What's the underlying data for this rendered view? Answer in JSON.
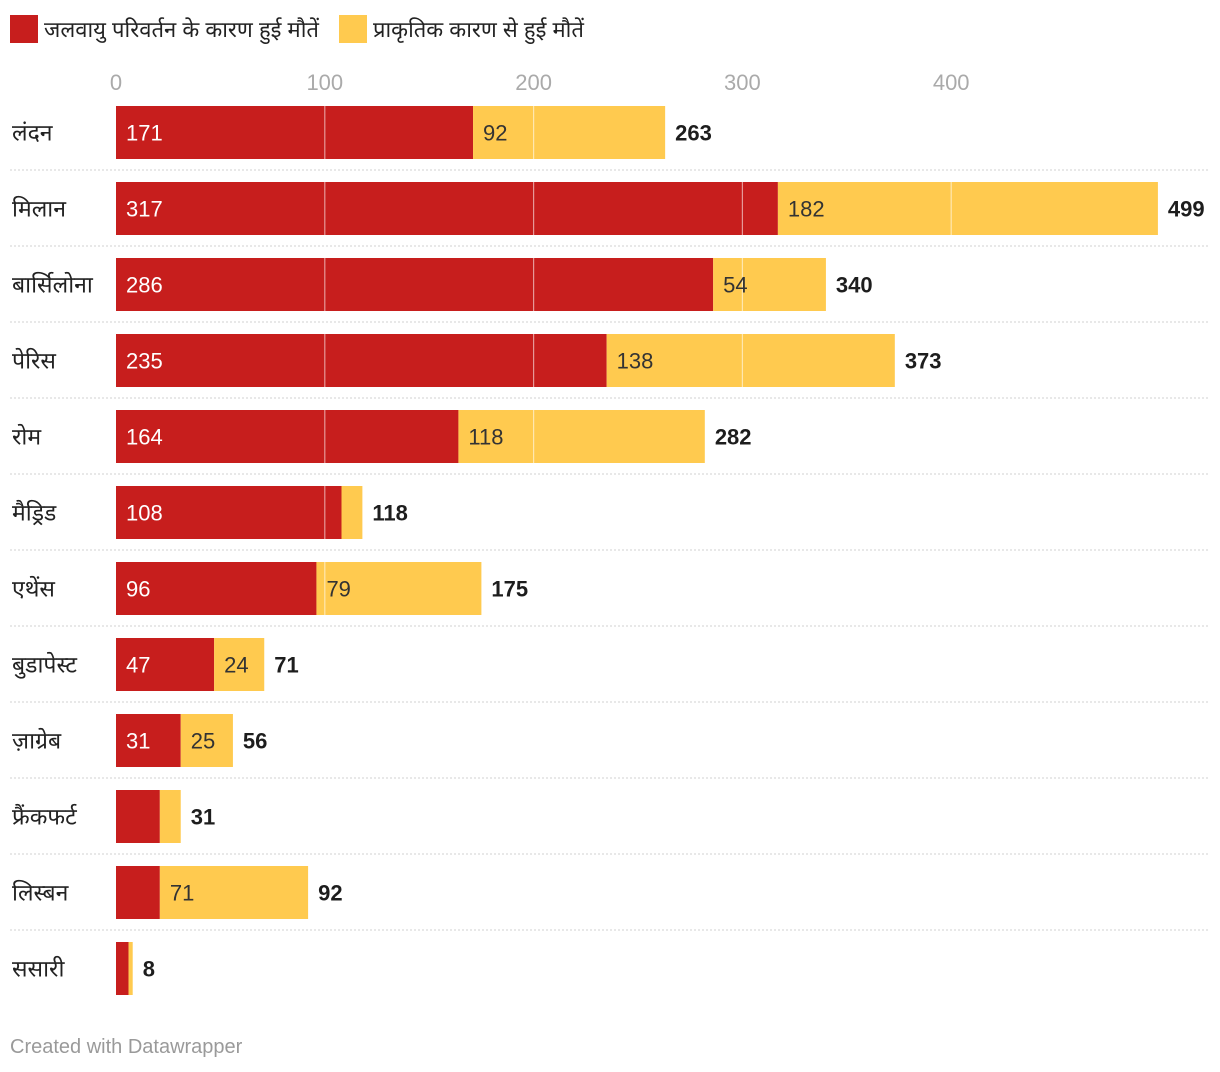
{
  "legend": {
    "climate_label": "जलवायु परिवर्तन के कारण हुई मौतें",
    "natural_label": "प्राकृतिक कारण से हुई मौतें"
  },
  "colors": {
    "climate": "#c71e1d",
    "natural": "#ffca4f",
    "grid": "#e0e0e0",
    "tick": "#aaaaaa"
  },
  "chart_data": {
    "type": "bar",
    "orientation": "horizontal",
    "stacked": true,
    "xlim": [
      0,
      500
    ],
    "xticks": [
      0,
      100,
      200,
      300,
      400
    ],
    "categories": [
      "लंदन",
      "मिलान",
      "बार्सिलोना",
      "पेरिस",
      "रोम",
      "मैड्रिड",
      "एथेंस",
      "बुडापेस्ट",
      "ज़ाग्रेब",
      "फ्रैंकफर्ट",
      "लिस्बन",
      "ससारी"
    ],
    "series": [
      {
        "name": "जलवायु परिवर्तन के कारण हुई मौतें",
        "values": [
          171,
          317,
          286,
          235,
          164,
          108,
          96,
          47,
          31,
          21,
          21,
          6
        ],
        "labels": [
          "171",
          "317",
          "286",
          "235",
          "164",
          "108",
          "96",
          "47",
          "31",
          "",
          "",
          ""
        ]
      },
      {
        "name": "प्राकृतिक कारण से हुई मौतें",
        "values": [
          92,
          182,
          54,
          138,
          118,
          10,
          79,
          24,
          25,
          10,
          71,
          2
        ],
        "labels": [
          "92",
          "182",
          "54",
          "138",
          "118",
          "",
          "79",
          "24",
          "25",
          "",
          "71",
          ""
        ]
      }
    ],
    "totals": [
      263,
      499,
      340,
      373,
      282,
      118,
      175,
      71,
      56,
      31,
      92,
      8
    ]
  },
  "footer": "Created with Datawrapper"
}
